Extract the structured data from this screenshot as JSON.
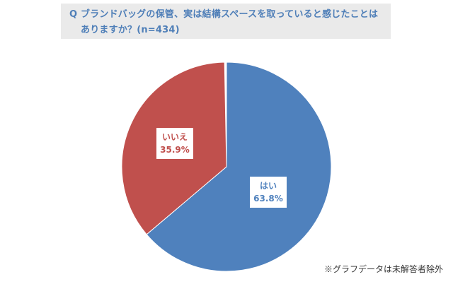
{
  "header": {
    "title_line1": "Q ブランドバッグの保管、実は結構スペースを取っていると感じたことは",
    "title_line2": "ありますか？(n=434)"
  },
  "chart_data": {
    "type": "pie",
    "labels": [
      "はい",
      "いいえ"
    ],
    "values": [
      63.8,
      35.9
    ],
    "value_labels": [
      "63.8%",
      "35.9%"
    ],
    "colors": [
      "#4f81bd",
      "#c0504d"
    ],
    "start": "12 o'clock, clockwise"
  },
  "footnote": "※グラフデータは未解答者除外"
}
